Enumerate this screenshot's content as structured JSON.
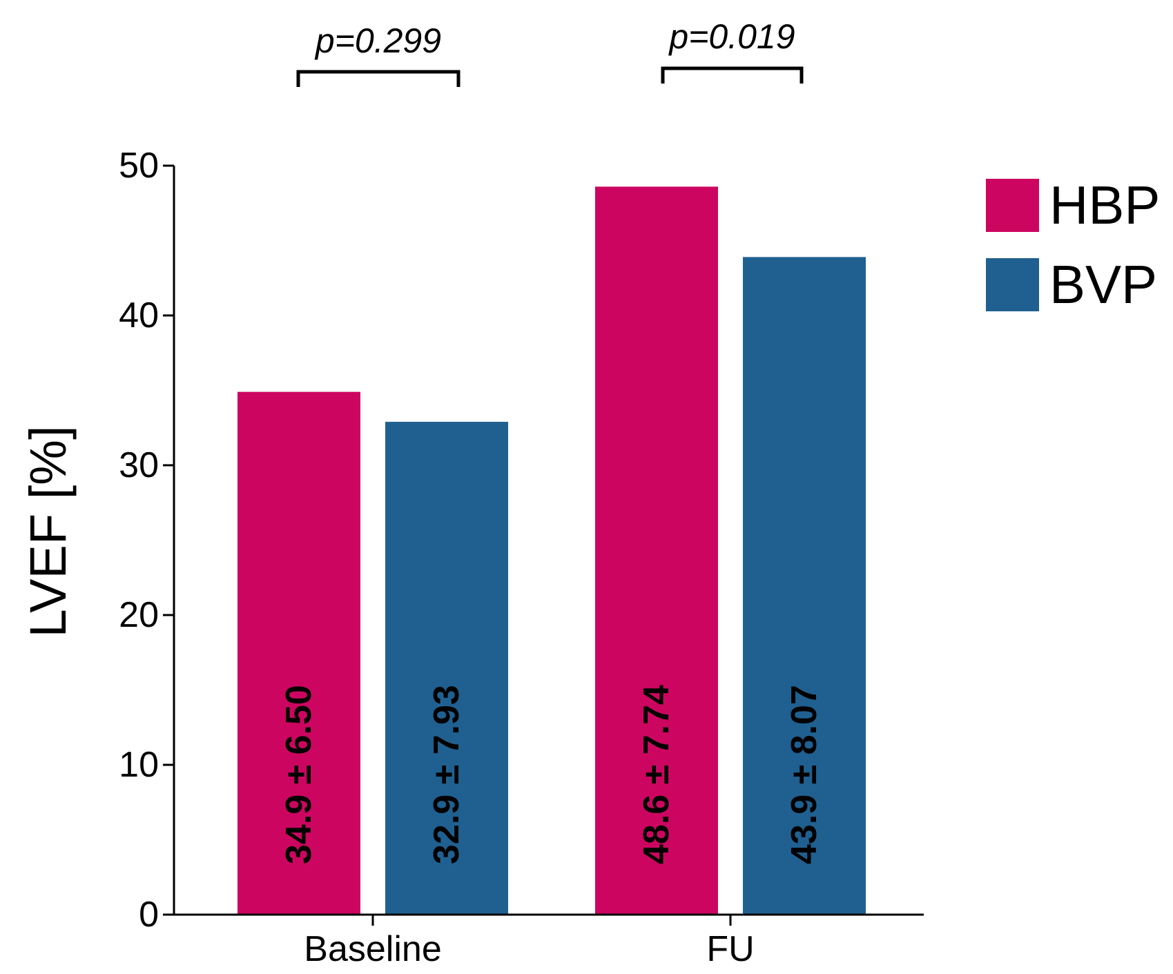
{
  "chart_data": {
    "type": "bar",
    "categories": [
      "Baseline",
      "FU"
    ],
    "series": [
      {
        "name": "HBP",
        "color": "#cc0660",
        "values": [
          34.9,
          48.6
        ],
        "labels": [
          "34.9 ± 6.50",
          "48.6 ± 7.74"
        ]
      },
      {
        "name": "BVP",
        "color": "#1f6090",
        "values": [
          32.9,
          43.9
        ],
        "labels": [
          "32.9 ± 7.93",
          "43.9 ± 8.07"
        ]
      }
    ],
    "ylabel": "LVEF [%]",
    "xlabel": "",
    "ylim": [
      0,
      50
    ],
    "yticks": [
      0,
      10,
      20,
      30,
      40,
      50
    ],
    "comparisons": [
      {
        "category": "Baseline",
        "text": "p=0.299"
      },
      {
        "category": "FU",
        "text": "p=0.019"
      }
    ],
    "legend_position": "top-right",
    "grid": false
  }
}
